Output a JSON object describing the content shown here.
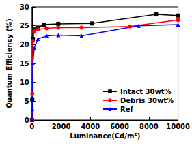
{
  "chart_data": {
    "type": "line",
    "x_label": "Luminance(Cd/m²)",
    "y_label": "Quantum Efficiency (%)",
    "xlim": [
      0,
      10000
    ],
    "xticks": [
      0,
      2000,
      4000,
      6000,
      8000,
      10000
    ],
    "ylim": [
      0,
      30
    ],
    "yticks": [
      0,
      5,
      10,
      15,
      20,
      25,
      30
    ],
    "grid": false,
    "legend": "lower right",
    "series": [
      {
        "name": "Intact 30wt%",
        "color": "#000000",
        "marker": "square",
        "line_style": "solid",
        "x": [
          0,
          20,
          60,
          150,
          400,
          800,
          1800,
          4100,
          8500,
          10000
        ],
        "values": [
          0,
          5.5,
          21.5,
          24,
          24.5,
          25.3,
          25.5,
          25.6,
          28,
          27.7
        ]
      },
      {
        "name": "Debris 30wt%",
        "color": "#ff0000",
        "marker": "circle",
        "line_style": "solid",
        "x": [
          0,
          20,
          60,
          150,
          400,
          1000,
          1800,
          3400,
          6700,
          10000
        ],
        "values": [
          0,
          7,
          21,
          23.5,
          24,
          24.3,
          24.5,
          24.5,
          24.8,
          26.5
        ]
      },
      {
        "name": "Ref",
        "color": "#0000ff",
        "marker": "triangle",
        "line_style": "solid",
        "x": [
          0,
          20,
          60,
          150,
          400,
          1000,
          1800,
          3400,
          7300,
          10000
        ],
        "values": [
          0,
          3,
          15,
          19,
          21.5,
          22.3,
          22.5,
          22.3,
          25,
          25.3
        ]
      }
    ]
  }
}
